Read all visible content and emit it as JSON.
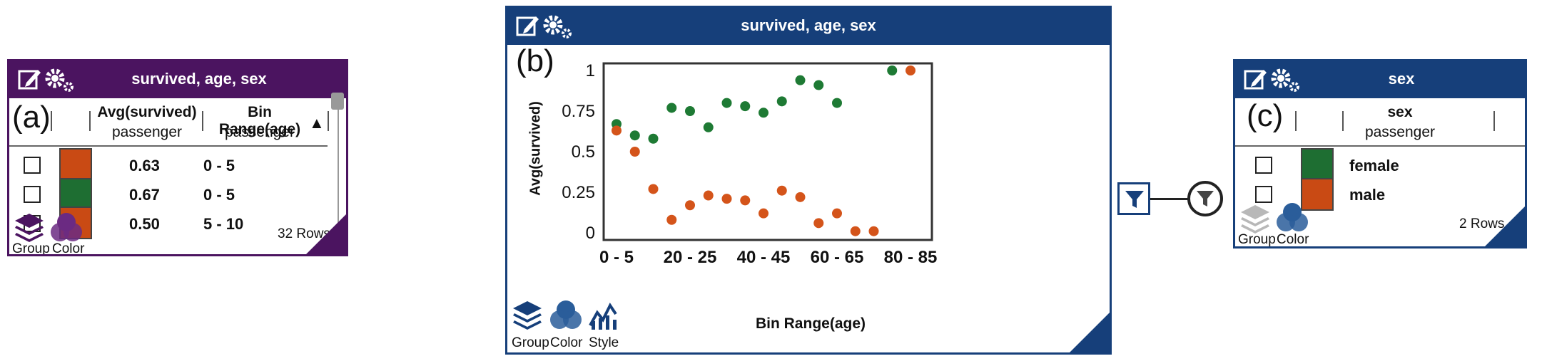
{
  "panel_a": {
    "label": "(a)",
    "title": "survived, age, sex",
    "columns": [
      {
        "title": "Avg(survived)",
        "subtitle": "passenger"
      },
      {
        "title": "Bin Range(age)",
        "subtitle": "passenger",
        "sort_indicator": "▲"
      }
    ],
    "rows": [
      {
        "color": "#c94a14",
        "value": "0.63",
        "range": "0 - 5"
      },
      {
        "color": "#1e6e32",
        "value": "0.67",
        "range": "0 - 5"
      },
      {
        "color": "#c94a14",
        "value": "0.50",
        "range": "5 - 10"
      }
    ],
    "row_count": "32  Rows",
    "footer": {
      "group_label": "Group",
      "color_label": "Color"
    },
    "accent": "#4b1460"
  },
  "panel_b": {
    "label": "(b)",
    "title": "survived, age, sex",
    "footer": {
      "group_label": "Group",
      "color_label": "Color",
      "style_label": "Style"
    },
    "accent": "#163f7a"
  },
  "panel_c": {
    "label": "(c)",
    "title": "sex",
    "column": {
      "title": "sex",
      "subtitle": "passenger"
    },
    "rows": [
      {
        "color": "#1e6e32",
        "label": "female"
      },
      {
        "color": "#c94a14",
        "label": "male"
      }
    ],
    "row_count": "2  Rows",
    "footer": {
      "group_label": "Group",
      "color_label": "Color"
    },
    "accent": "#163f7a"
  },
  "chart_data": {
    "type": "scatter",
    "title": "",
    "xlabel": "Bin Range(age)",
    "ylabel": "Avg(survived)",
    "x_tick_labels": [
      "0 - 5",
      "20 - 25",
      "40 - 45",
      "60 - 65",
      "80 - 85"
    ],
    "y_tick_labels": [
      "0",
      "0.25",
      "0.5",
      "0.75",
      "1"
    ],
    "ylim": [
      0,
      1
    ],
    "grid": true,
    "series": [
      {
        "color": "#1e7a34",
        "points": [
          {
            "x": "0 - 5",
            "y": 0.67
          },
          {
            "x": "5 - 10",
            "y": 0.6
          },
          {
            "x": "10 - 15",
            "y": 0.58
          },
          {
            "x": "15 - 20",
            "y": 0.77
          },
          {
            "x": "20 - 25",
            "y": 0.75
          },
          {
            "x": "25 - 30",
            "y": 0.65
          },
          {
            "x": "30 - 35",
            "y": 0.8
          },
          {
            "x": "35 - 40",
            "y": 0.78
          },
          {
            "x": "40 - 45",
            "y": 0.74
          },
          {
            "x": "45 - 50",
            "y": 0.81
          },
          {
            "x": "50 - 55",
            "y": 0.94
          },
          {
            "x": "55 - 60",
            "y": 0.91
          },
          {
            "x": "60 - 65",
            "y": 0.8
          },
          {
            "x": "75 - 80",
            "y": 1.0
          }
        ]
      },
      {
        "color": "#d4541a",
        "points": [
          {
            "x": "0 - 5",
            "y": 0.63
          },
          {
            "x": "5 - 10",
            "y": 0.5
          },
          {
            "x": "10 - 15",
            "y": 0.27
          },
          {
            "x": "15 - 20",
            "y": 0.08
          },
          {
            "x": "20 - 25",
            "y": 0.17
          },
          {
            "x": "25 - 30",
            "y": 0.23
          },
          {
            "x": "30 - 35",
            "y": 0.21
          },
          {
            "x": "35 - 40",
            "y": 0.2
          },
          {
            "x": "40 - 45",
            "y": 0.12
          },
          {
            "x": "45 - 50",
            "y": 0.26
          },
          {
            "x": "50 - 55",
            "y": 0.22
          },
          {
            "x": "55 - 60",
            "y": 0.06
          },
          {
            "x": "60 - 65",
            "y": 0.12
          },
          {
            "x": "65 - 70",
            "y": 0.01
          },
          {
            "x": "70 - 75",
            "y": 0.01
          },
          {
            "x": "80 - 85",
            "y": 1.0
          }
        ]
      }
    ]
  }
}
